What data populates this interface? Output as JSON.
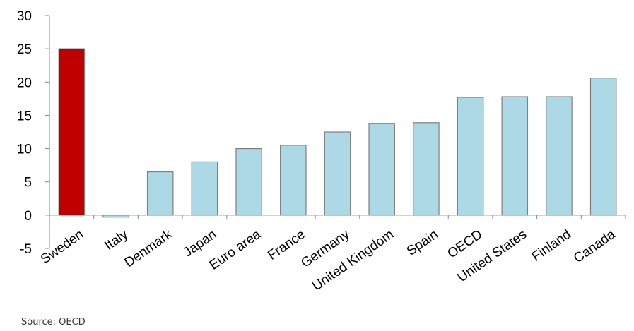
{
  "chart_data": {
    "type": "bar",
    "title": "",
    "xlabel": "",
    "ylabel": "",
    "ylim": [
      -5,
      30
    ],
    "yticks": [
      -5,
      0,
      5,
      10,
      15,
      20,
      25,
      30
    ],
    "categories": [
      "Sweden",
      "Italy",
      "Denmark",
      "Japan",
      "Euro area",
      "France",
      "Germany",
      "United Kingdom",
      "Spain",
      "OECD",
      "United States",
      "Finland",
      "Canada"
    ],
    "values": [
      25.0,
      -0.3,
      6.5,
      8.0,
      10.0,
      10.5,
      12.5,
      13.8,
      13.9,
      17.7,
      17.8,
      17.8,
      20.6
    ],
    "highlight_index": 0,
    "highlight_color": "#c00000",
    "bar_color": "#add8e6",
    "grid": false
  },
  "source": "Source: OECD"
}
